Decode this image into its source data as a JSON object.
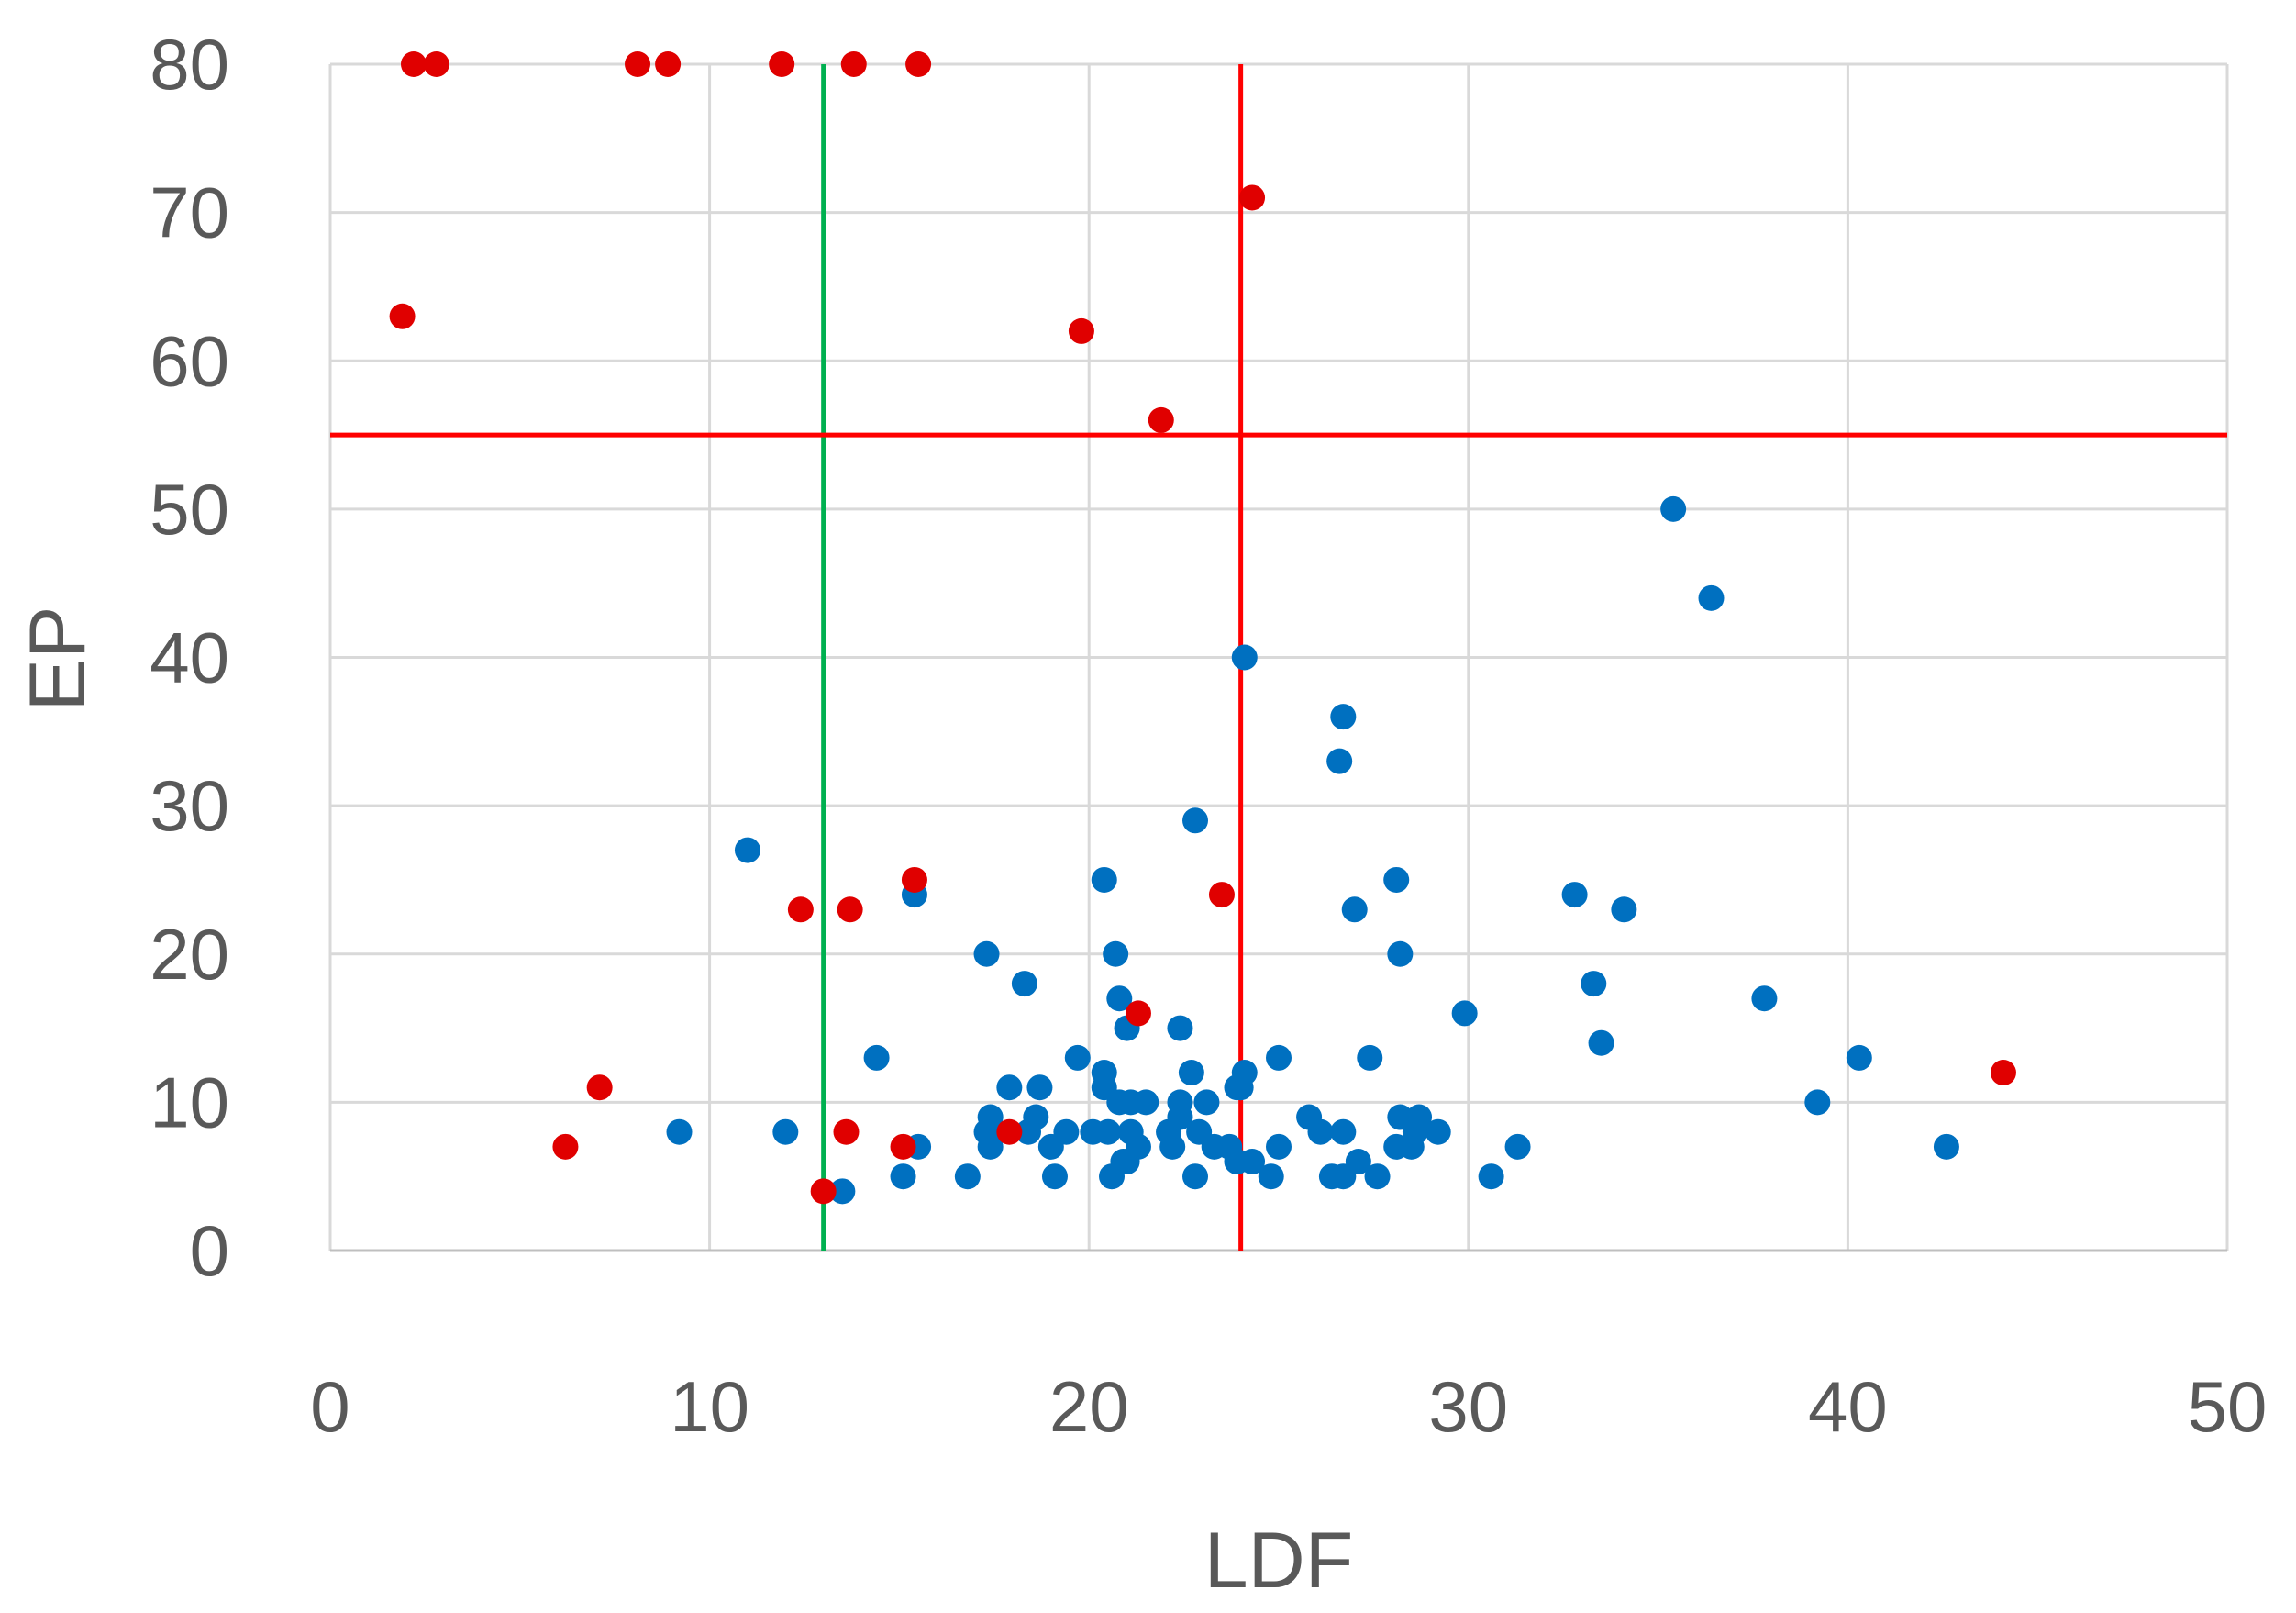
{
  "chart_data": {
    "type": "scatter",
    "xlabel": "LDF",
    "ylabel": "EP",
    "xlim": [
      0,
      50
    ],
    "ylim": [
      0,
      80
    ],
    "x_ticks": [
      0,
      10,
      20,
      30,
      40,
      50
    ],
    "y_ticks": [
      0,
      10,
      20,
      30,
      40,
      50,
      60,
      70,
      80
    ],
    "grid": true,
    "colors": {
      "blue_series": "#0070C0",
      "red_series": "#E00000",
      "green_line": "#00B050",
      "red_line": "#FF0000",
      "grid": "#D9D9D9",
      "text": "#595959"
    },
    "reference_lines": [
      {
        "orientation": "vertical",
        "x": 13,
        "color": "#00B050"
      },
      {
        "orientation": "vertical",
        "x": 24,
        "color": "#FF0000"
      },
      {
        "orientation": "horizontal",
        "y": 55,
        "color": "#FF0000"
      }
    ],
    "series": [
      {
        "color": "#0070C0",
        "points": [
          [
            35.4,
            50
          ],
          [
            36.4,
            44
          ],
          [
            24.1,
            40
          ],
          [
            26.7,
            36
          ],
          [
            26.6,
            33
          ],
          [
            22.8,
            29
          ],
          [
            11,
            27
          ],
          [
            20.4,
            25
          ],
          [
            28.1,
            25
          ],
          [
            32.8,
            24
          ],
          [
            15.4,
            24
          ],
          [
            34.1,
            23
          ],
          [
            27,
            23
          ],
          [
            17.3,
            20
          ],
          [
            20.7,
            20
          ],
          [
            28.2,
            20
          ],
          [
            18.3,
            18
          ],
          [
            33.3,
            18
          ],
          [
            20.8,
            17
          ],
          [
            37.8,
            17
          ],
          [
            29.9,
            16
          ],
          [
            22.4,
            15
          ],
          [
            21,
            15
          ],
          [
            33.5,
            14
          ],
          [
            14.4,
            13
          ],
          [
            19.7,
            13
          ],
          [
            25,
            13
          ],
          [
            27.4,
            13
          ],
          [
            40.3,
            13
          ],
          [
            22.7,
            12
          ],
          [
            20.4,
            12
          ],
          [
            24.1,
            12
          ],
          [
            17.9,
            11
          ],
          [
            18.7,
            11
          ],
          [
            20.4,
            11
          ],
          [
            24,
            11
          ],
          [
            23.9,
            11
          ],
          [
            39.2,
            10
          ],
          [
            20.8,
            10
          ],
          [
            21.1,
            10
          ],
          [
            21.5,
            10
          ],
          [
            22.4,
            10
          ],
          [
            23.1,
            10
          ],
          [
            25.8,
            9
          ],
          [
            18.6,
            9
          ],
          [
            17.4,
            9
          ],
          [
            22.4,
            9
          ],
          [
            28.2,
            9
          ],
          [
            28.7,
            9
          ],
          [
            9.2,
            8
          ],
          [
            12,
            8
          ],
          [
            17.3,
            8
          ],
          [
            18.4,
            8
          ],
          [
            19.4,
            8
          ],
          [
            20.1,
            8
          ],
          [
            20.5,
            8
          ],
          [
            21.1,
            8
          ],
          [
            22.1,
            8
          ],
          [
            22.9,
            8
          ],
          [
            26.1,
            8
          ],
          [
            26.7,
            8
          ],
          [
            28.6,
            8
          ],
          [
            29.2,
            8
          ],
          [
            15.5,
            7
          ],
          [
            17.4,
            7
          ],
          [
            19,
            7
          ],
          [
            21.3,
            7
          ],
          [
            22.2,
            7
          ],
          [
            23.3,
            7
          ],
          [
            23.7,
            7
          ],
          [
            25,
            7
          ],
          [
            28.1,
            7
          ],
          [
            28.5,
            7
          ],
          [
            31.3,
            7
          ],
          [
            42.6,
            7
          ],
          [
            21,
            6
          ],
          [
            23.9,
            6
          ],
          [
            24.3,
            6
          ],
          [
            27.1,
            6
          ],
          [
            20.9,
            6
          ],
          [
            15.1,
            5
          ],
          [
            16.8,
            5
          ],
          [
            19.1,
            5
          ],
          [
            20.6,
            5
          ],
          [
            22.8,
            5
          ],
          [
            24.8,
            5
          ],
          [
            26.4,
            5
          ],
          [
            26.7,
            5
          ],
          [
            27.6,
            5
          ],
          [
            30.6,
            5
          ],
          [
            13.5,
            4
          ]
        ]
      },
      {
        "color": "#E00000",
        "points": [
          [
            2.2,
            80
          ],
          [
            2.8,
            80
          ],
          [
            8.1,
            80
          ],
          [
            8.9,
            80
          ],
          [
            11.9,
            80
          ],
          [
            13.8,
            80
          ],
          [
            15.5,
            80
          ],
          [
            24.3,
            71
          ],
          [
            1.9,
            63
          ],
          [
            19.8,
            62
          ],
          [
            21.9,
            56
          ],
          [
            15.4,
            25
          ],
          [
            23.5,
            24
          ],
          [
            12.4,
            23
          ],
          [
            13.7,
            23
          ],
          [
            21.3,
            16
          ],
          [
            44.1,
            12
          ],
          [
            7.1,
            11
          ],
          [
            13.6,
            8
          ],
          [
            17.9,
            8
          ],
          [
            6.2,
            7
          ],
          [
            15.1,
            7
          ],
          [
            13,
            4
          ]
        ]
      }
    ]
  }
}
